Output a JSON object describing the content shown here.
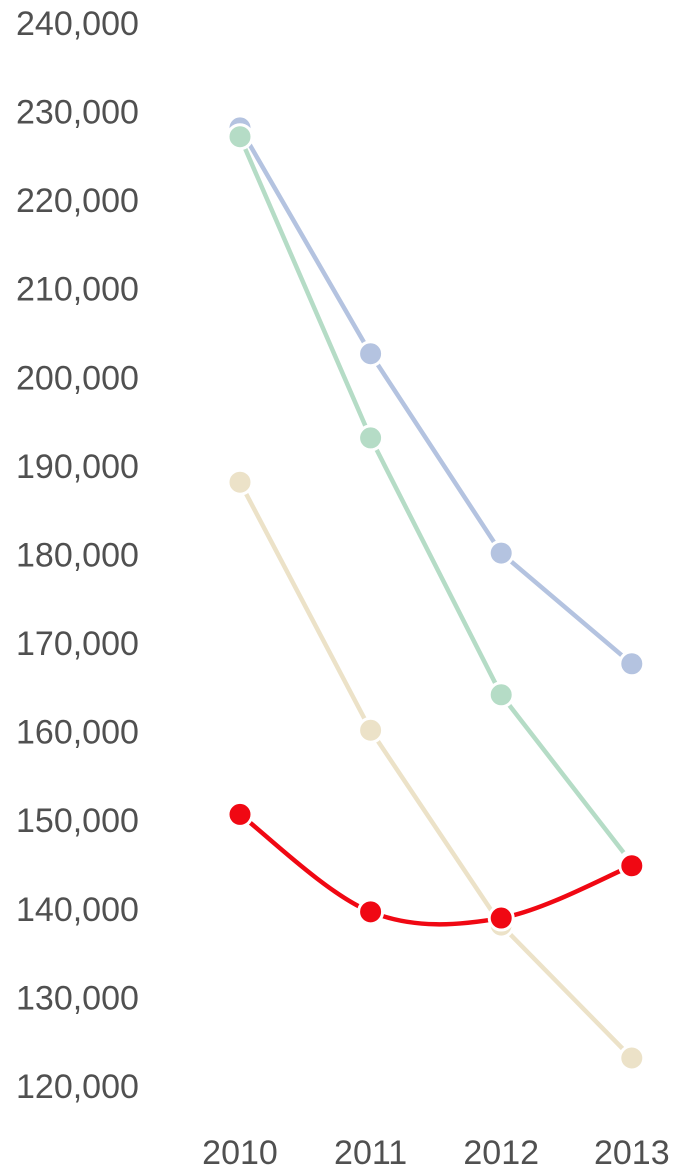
{
  "chart_data": {
    "type": "line",
    "title": "",
    "xlabel": "",
    "ylabel": "",
    "x": [
      "2010",
      "2011",
      "2012",
      "2013"
    ],
    "ylim": [
      120000,
      240000
    ],
    "y_ticks": [
      240000,
      230000,
      220000,
      210000,
      200000,
      190000,
      180000,
      170000,
      160000,
      150000,
      140000,
      130000,
      120000
    ],
    "y_tick_labels": [
      "240,000",
      "230,000",
      "220,000",
      "210,000",
      "200,000",
      "190,000",
      "180,000",
      "170,000",
      "160,000",
      "150,000",
      "140,000",
      "130,000",
      "120,000"
    ],
    "grid": false,
    "legend": "none",
    "series": [
      {
        "color": "#b4c3e0",
        "smooth": false,
        "values": [
          228500,
          203000,
          180500,
          168000
        ]
      },
      {
        "color": "#b5dcc6",
        "smooth": false,
        "values": [
          227500,
          193500,
          164500,
          145500
        ]
      },
      {
        "color": "#ece2c8",
        "smooth": false,
        "values": [
          188500,
          160500,
          138500,
          123500
        ]
      },
      {
        "color": "#f00813",
        "smooth": true,
        "values": [
          151000,
          140000,
          139300,
          145200
        ]
      }
    ]
  }
}
